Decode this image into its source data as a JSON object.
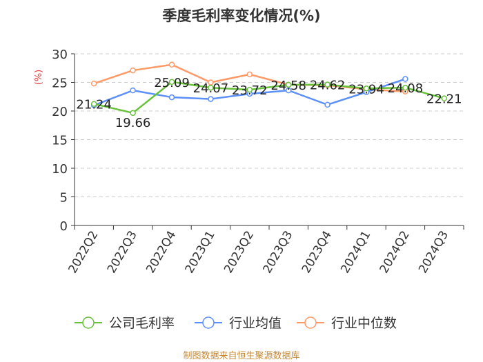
{
  "chart_data": {
    "type": "line",
    "title": "季度毛利率变化情况(%)",
    "ylabel": "(%)",
    "ylim": [
      0,
      30
    ],
    "yticks": [
      0,
      5,
      10,
      15,
      20,
      25,
      30
    ],
    "grid": true,
    "legend_position": "bottom",
    "categories": [
      "2022Q2",
      "2022Q3",
      "2022Q4",
      "2023Q1",
      "2023Q2",
      "2023Q3",
      "2023Q4",
      "2024Q1",
      "2024Q2",
      "2024Q3"
    ],
    "series": [
      {
        "name": "公司毛利率",
        "color": "#67c23a",
        "values": [
          21.24,
          19.66,
          25.09,
          24.07,
          23.72,
          24.58,
          24.62,
          23.94,
          24.08,
          22.21
        ],
        "labels": [
          "21.24",
          "19.66",
          "25.09",
          "24.07",
          "23.72",
          "24.58",
          "24.62",
          "23.94",
          "24.08",
          "22.21"
        ]
      },
      {
        "name": "行业均值",
        "color": "#5b8ff9",
        "values": [
          21.0,
          23.6,
          22.4,
          22.1,
          23.0,
          23.6,
          21.1,
          23.3,
          25.6,
          null
        ]
      },
      {
        "name": "行业中位数",
        "color": "#ff9966",
        "values": [
          24.8,
          27.1,
          28.1,
          25.0,
          26.4,
          24.6,
          24.5,
          23.8,
          23.4,
          null
        ]
      }
    ]
  },
  "footer": {
    "source": "制图数据来自恒生聚源数据库"
  }
}
